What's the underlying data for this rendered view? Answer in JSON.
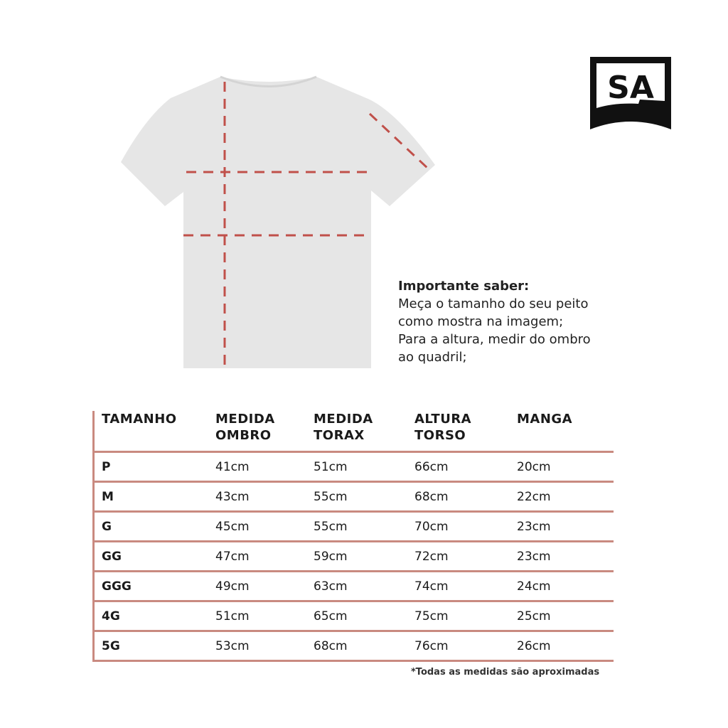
{
  "logo": {
    "text": "SA"
  },
  "info": {
    "title": "Importante saber:",
    "lines": [
      "Meça o tamanho do seu peito",
      "como mostra na imagem;",
      "Para a altura, medir do ombro",
      "ao quadril;"
    ]
  },
  "table": {
    "headers": [
      [
        "TAMANHO",
        ""
      ],
      [
        "MEDIDA",
        "OMBRO"
      ],
      [
        "MEDIDA",
        "TORAX"
      ],
      [
        "ALTURA",
        "TORSO"
      ],
      [
        "MANGA",
        ""
      ]
    ],
    "rows": [
      [
        "P",
        "41cm",
        "51cm",
        "66cm",
        "20cm"
      ],
      [
        "M",
        "43cm",
        "55cm",
        "68cm",
        "22cm"
      ],
      [
        "G",
        "45cm",
        "55cm",
        "70cm",
        "23cm"
      ],
      [
        "GG",
        "47cm",
        "59cm",
        "72cm",
        "23cm"
      ],
      [
        "GGG",
        "49cm",
        "63cm",
        "74cm",
        "24cm"
      ],
      [
        "4G",
        "51cm",
        "65cm",
        "75cm",
        "25cm"
      ],
      [
        "5G",
        "53cm",
        "68cm",
        "76cm",
        "26cm"
      ]
    ]
  },
  "note": "*Todas as medidas são aproximadas",
  "colors": {
    "line": "#c98a80",
    "dash": "#c0504a",
    "shirt": "#e6e6e6"
  }
}
